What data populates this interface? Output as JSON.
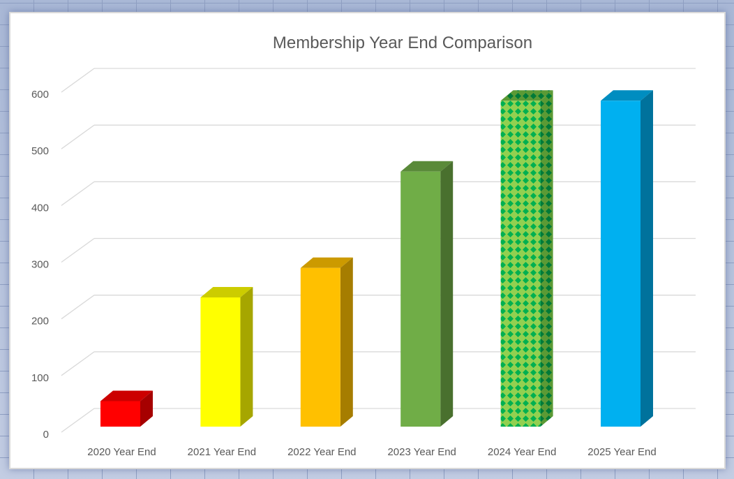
{
  "chart_data": {
    "type": "bar",
    "style": "3d-column",
    "title": "Membership Year End Comparison",
    "xlabel": "",
    "ylabel": "",
    "ylim": [
      0,
      600
    ],
    "yticks": [
      0,
      100,
      200,
      300,
      400,
      500,
      600
    ],
    "grid": true,
    "legend": "none",
    "categories": [
      "2020 Year End",
      "2021 Year End",
      "2022 Year End",
      "2023 Year End",
      "2024 Year End",
      "2025 Year End"
    ],
    "values": [
      45,
      228,
      280,
      450,
      575,
      575
    ],
    "colors": [
      "#ff0000",
      "#ffff00",
      "#ffc000",
      "#70ad47",
      "#92d050",
      "#00b0f0"
    ],
    "patterns": [
      "solid",
      "solid",
      "solid",
      "solid",
      "green-diamond-check",
      "solid"
    ]
  }
}
